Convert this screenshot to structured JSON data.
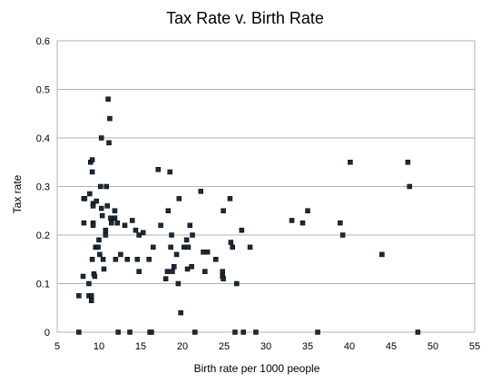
{
  "chart_data": {
    "type": "scatter",
    "title": "Tax Rate v. Birth Rate",
    "xlabel": "Birth rate per 1000 people",
    "ylabel": "Tax rate",
    "xlim": [
      5,
      55
    ],
    "ylim": [
      0,
      0.6
    ],
    "x_ticks": [
      "5",
      "10",
      "15",
      "20",
      "25",
      "30",
      "35",
      "40",
      "45",
      "50",
      "55"
    ],
    "y_ticks": [
      "0",
      "0.1",
      "0.2",
      "0.3",
      "0.4",
      "0.5",
      "0.6"
    ],
    "grid": "horizontal",
    "marker_color": "#1b2a3a",
    "points": [
      [
        7.6,
        0
      ],
      [
        7.6,
        0.075
      ],
      [
        8.1,
        0.115
      ],
      [
        8.2,
        0.225
      ],
      [
        8.2,
        0.275
      ],
      [
        8.3,
        0.275
      ],
      [
        8.8,
        0.075
      ],
      [
        8.8,
        0.1
      ],
      [
        8.9,
        0.285
      ],
      [
        9.0,
        0.35
      ],
      [
        9.1,
        0.075
      ],
      [
        9.1,
        0.065
      ],
      [
        9.2,
        0.355
      ],
      [
        9.2,
        0.33
      ],
      [
        9.3,
        0.265
      ],
      [
        9.3,
        0.26
      ],
      [
        9.3,
        0.225
      ],
      [
        9.3,
        0.22
      ],
      [
        9.2,
        0.15
      ],
      [
        9.4,
        0.12
      ],
      [
        9.5,
        0.115
      ],
      [
        9.6,
        0.175
      ],
      [
        9.7,
        0.27
      ],
      [
        9.9,
        0.175
      ],
      [
        10.0,
        0.19
      ],
      [
        10.1,
        0.16
      ],
      [
        10.2,
        0.3
      ],
      [
        10.3,
        0.4
      ],
      [
        10.3,
        0.255
      ],
      [
        10.4,
        0.24
      ],
      [
        10.5,
        0.15
      ],
      [
        10.6,
        0.13
      ],
      [
        10.8,
        0.2
      ],
      [
        10.8,
        0.21
      ],
      [
        10.9,
        0.3
      ],
      [
        11.0,
        0.26
      ],
      [
        11.1,
        0.48
      ],
      [
        11.2,
        0.39
      ],
      [
        11.3,
        0.44
      ],
      [
        11.4,
        0.235
      ],
      [
        11.5,
        0.225
      ],
      [
        11.9,
        0.25
      ],
      [
        11.9,
        0.235
      ],
      [
        12.0,
        0.15
      ],
      [
        12.2,
        0.225
      ],
      [
        12.6,
        0.16
      ],
      [
        12.3,
        0
      ],
      [
        13.4,
        0.15
      ],
      [
        13.1,
        0.22
      ],
      [
        13.7,
        0
      ],
      [
        14.0,
        0.23
      ],
      [
        14.4,
        0.21
      ],
      [
        14.6,
        0.15
      ],
      [
        14.8,
        0.2
      ],
      [
        14.8,
        0.125
      ],
      [
        15.3,
        0.205
      ],
      [
        16.0,
        0.15
      ],
      [
        16.1,
        0
      ],
      [
        16.3,
        0
      ],
      [
        16.5,
        0.175
      ],
      [
        17.1,
        0.335
      ],
      [
        17.4,
        0.22
      ],
      [
        18.0,
        0.11
      ],
      [
        18.2,
        0.125
      ],
      [
        18.3,
        0.25
      ],
      [
        18.5,
        0.33
      ],
      [
        18.6,
        0.175
      ],
      [
        18.7,
        0.2
      ],
      [
        18.8,
        0.125
      ],
      [
        19.0,
        0.135
      ],
      [
        19.3,
        0.16
      ],
      [
        19.5,
        0.1
      ],
      [
        19.6,
        0.275
      ],
      [
        19.8,
        0.04
      ],
      [
        20.2,
        0.175
      ],
      [
        20.5,
        0.19
      ],
      [
        20.6,
        0.13
      ],
      [
        20.7,
        0.175
      ],
      [
        20.9,
        0.22
      ],
      [
        21.1,
        0.135
      ],
      [
        21.2,
        0.2
      ],
      [
        21.5,
        0
      ],
      [
        22.2,
        0.29
      ],
      [
        22.5,
        0.165
      ],
      [
        22.7,
        0.125
      ],
      [
        23.0,
        0.165
      ],
      [
        24.0,
        0.15
      ],
      [
        24.8,
        0.125
      ],
      [
        24.8,
        0.115
      ],
      [
        24.9,
        0.25
      ],
      [
        24.9,
        0.11
      ],
      [
        25.7,
        0.275
      ],
      [
        25.8,
        0.185
      ],
      [
        26.0,
        0.175
      ],
      [
        26.3,
        0
      ],
      [
        26.5,
        0.1
      ],
      [
        27.1,
        0.21
      ],
      [
        27.3,
        0
      ],
      [
        28.1,
        0.175
      ],
      [
        28.8,
        0
      ],
      [
        33.1,
        0.23
      ],
      [
        34.4,
        0.225
      ],
      [
        35.0,
        0.25
      ],
      [
        36.2,
        0
      ],
      [
        38.9,
        0.225
      ],
      [
        39.2,
        0.2
      ],
      [
        40.1,
        0.35
      ],
      [
        43.9,
        0.16
      ],
      [
        47.0,
        0.35
      ],
      [
        47.2,
        0.3
      ],
      [
        48.2,
        0
      ]
    ]
  }
}
